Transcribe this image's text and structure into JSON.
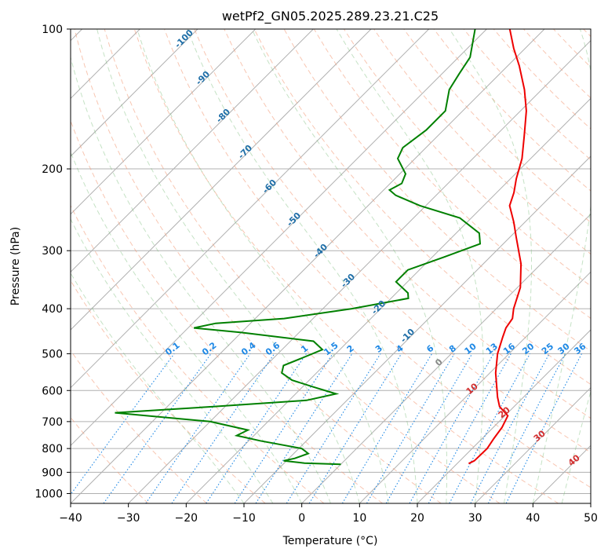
{
  "chart_data": {
    "type": "line",
    "diagram": "skew-T log-P",
    "title": "wetPf2_GN05.2025.289.23.21.C25",
    "xlabel": "Temperature (°C)",
    "ylabel": "Pressure (hPa)",
    "xlim": [
      -40,
      50
    ],
    "ylim": [
      1050,
      100
    ],
    "yscale": "log",
    "grid": true,
    "x_ticks": [
      "−40",
      "−30",
      "−20",
      "−10",
      "0",
      "10",
      "20",
      "30",
      "40",
      "50"
    ],
    "x_tick_values": [
      -40,
      -30,
      -20,
      -10,
      0,
      10,
      20,
      30,
      40,
      50
    ],
    "y_ticks": [
      "100",
      "200",
      "300",
      "400",
      "500",
      "600",
      "700",
      "800",
      "900",
      "1000"
    ],
    "y_tick_values": [
      100,
      200,
      300,
      400,
      500,
      600,
      700,
      800,
      900,
      1000
    ],
    "series": [
      {
        "role": "temperature",
        "color": "#ee0000",
        "points": [
          [
            22.0,
            862
          ],
          [
            22.5,
            850
          ],
          [
            22.6,
            800
          ],
          [
            22.0,
            760
          ],
          [
            21.5,
            720
          ],
          [
            20.5,
            680
          ],
          [
            17.5,
            650
          ],
          [
            15.5,
            620
          ],
          [
            11.0,
            550
          ],
          [
            8.0,
            500
          ],
          [
            6.0,
            460
          ],
          [
            5.0,
            440
          ],
          [
            4.5,
            420
          ],
          [
            3.0,
            400
          ],
          [
            0.5,
            360
          ],
          [
            -3.5,
            320
          ],
          [
            -9.0,
            280
          ],
          [
            -12.0,
            260
          ],
          [
            -15.5,
            240
          ],
          [
            -17.0,
            225
          ],
          [
            -19.0,
            210
          ],
          [
            -21.5,
            190
          ],
          [
            -25.0,
            170
          ],
          [
            -29.0,
            150
          ],
          [
            -33.0,
            135
          ],
          [
            -38.0,
            120
          ],
          [
            -42.0,
            110
          ],
          [
            -46.0,
            100
          ]
        ]
      },
      {
        "role": "dewpoint",
        "color": "#008000",
        "points": [
          [
            0,
            865
          ],
          [
            -6.5,
            860
          ],
          [
            -10.5,
            850
          ],
          [
            -9.0,
            840
          ],
          [
            -7.5,
            820
          ],
          [
            -9.5,
            800
          ],
          [
            -18.0,
            770
          ],
          [
            -23.0,
            750
          ],
          [
            -22.0,
            730
          ],
          [
            -30.0,
            700
          ],
          [
            -48.0,
            670
          ],
          [
            -32.0,
            650
          ],
          [
            -17.0,
            630
          ],
          [
            -13.0,
            610
          ],
          [
            -18.0,
            590
          ],
          [
            -23.0,
            570
          ],
          [
            -26.0,
            550
          ],
          [
            -27.0,
            530
          ],
          [
            -25.0,
            510
          ],
          [
            -23.0,
            490
          ],
          [
            -26.0,
            470
          ],
          [
            -40.0,
            450
          ],
          [
            -49.0,
            440
          ],
          [
            -46.0,
            430
          ],
          [
            -35.0,
            420
          ],
          [
            -25.0,
            400
          ],
          [
            -17.0,
            380
          ],
          [
            -18.0,
            370
          ],
          [
            -22.0,
            350
          ],
          [
            -22.0,
            330
          ],
          [
            -18.0,
            310
          ],
          [
            -14.0,
            290
          ],
          [
            -16.0,
            275
          ],
          [
            -22.0,
            255
          ],
          [
            -31.0,
            240
          ],
          [
            -37.0,
            228
          ],
          [
            -39.0,
            222
          ],
          [
            -38.0,
            215
          ],
          [
            -39.0,
            205
          ],
          [
            -43.0,
            190
          ],
          [
            -44.0,
            180
          ],
          [
            -43.0,
            165
          ],
          [
            -43.0,
            150
          ],
          [
            -46.0,
            135
          ],
          [
            -47.0,
            125
          ],
          [
            -48.0,
            115
          ],
          [
            -52.0,
            100
          ]
        ]
      }
    ],
    "dry_adiabat_labels": [
      "-100",
      "-90",
      "-80",
      "-70",
      "-60",
      "-50",
      "-40",
      "-30",
      "-20",
      "-10",
      "0"
    ],
    "mixing_ratio_labels": [
      "0.1",
      "0.2",
      "0.4",
      "0.6",
      "1",
      "1.5",
      "2",
      "3",
      "4",
      "6",
      "8",
      "10",
      "13",
      "16",
      "20",
      "25",
      "30",
      "36"
    ],
    "moist_adiabat_labels": [
      "10",
      "20",
      "30",
      "40"
    ]
  }
}
